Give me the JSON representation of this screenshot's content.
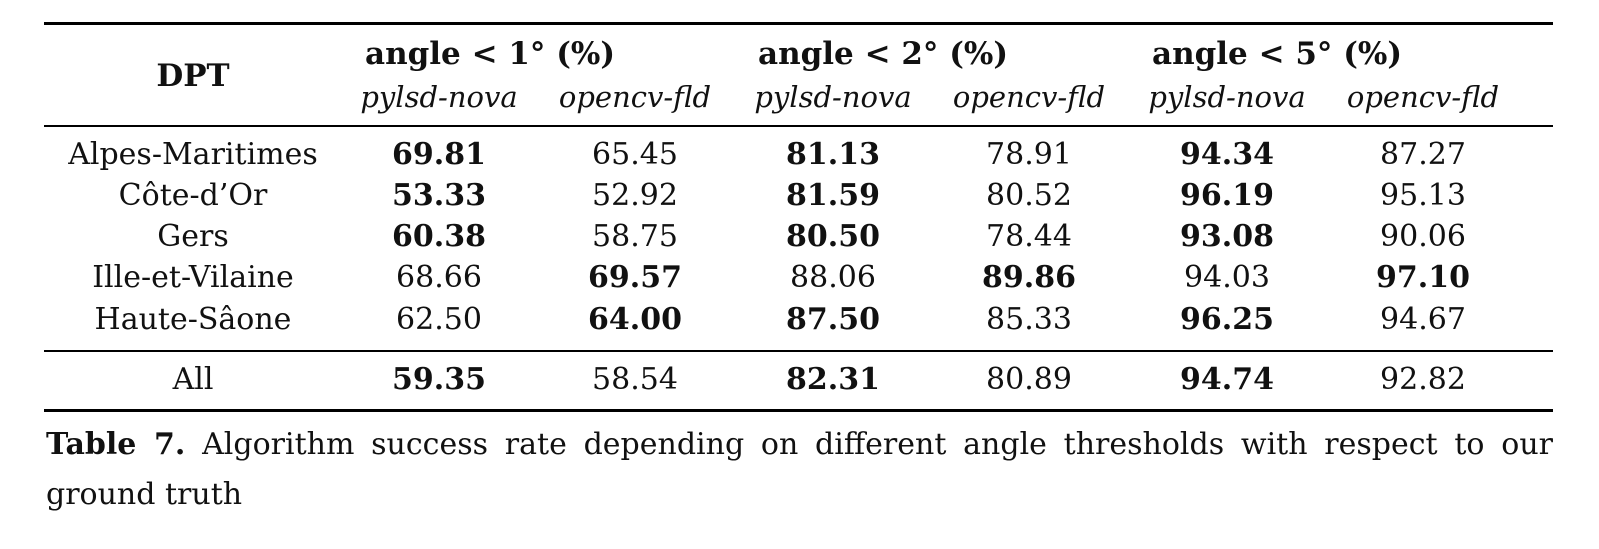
{
  "table": {
    "row_header": "DPT",
    "groups": [
      {
        "label": "angle < 1° (%)",
        "cols": [
          "pylsd-nova",
          "opencv-fld"
        ]
      },
      {
        "label": "angle < 2° (%)",
        "cols": [
          "pylsd-nova",
          "opencv-fld"
        ]
      },
      {
        "label": "angle < 5° (%)",
        "cols": [
          "pylsd-nova",
          "opencv-fld"
        ]
      }
    ],
    "rows": [
      {
        "name": "Alpes-Maritimes",
        "values": [
          "69.81",
          "65.45",
          "81.13",
          "78.91",
          "94.34",
          "87.27"
        ],
        "bold": [
          true,
          false,
          true,
          false,
          true,
          false
        ]
      },
      {
        "name": "Côte-d’Or",
        "values": [
          "53.33",
          "52.92",
          "81.59",
          "80.52",
          "96.19",
          "95.13"
        ],
        "bold": [
          true,
          false,
          true,
          false,
          true,
          false
        ]
      },
      {
        "name": "Gers",
        "values": [
          "60.38",
          "58.75",
          "80.50",
          "78.44",
          "93.08",
          "90.06"
        ],
        "bold": [
          true,
          false,
          true,
          false,
          true,
          false
        ]
      },
      {
        "name": "Ille-et-Vilaine",
        "values": [
          "68.66",
          "69.57",
          "88.06",
          "89.86",
          "94.03",
          "97.10"
        ],
        "bold": [
          false,
          true,
          false,
          true,
          false,
          true
        ]
      },
      {
        "name": "Haute-Sâone",
        "values": [
          "62.50",
          "64.00",
          "87.50",
          "85.33",
          "96.25",
          "94.67"
        ],
        "bold": [
          false,
          true,
          true,
          false,
          true,
          false
        ]
      }
    ],
    "total": {
      "name": "All",
      "values": [
        "59.35",
        "58.54",
        "82.31",
        "80.89",
        "94.74",
        "92.82"
      ],
      "bold": [
        true,
        false,
        true,
        false,
        true,
        false
      ]
    }
  },
  "caption": {
    "label": "Table 7.",
    "text": "Algorithm success rate depending on different angle thresholds with respect to our ground truth"
  }
}
